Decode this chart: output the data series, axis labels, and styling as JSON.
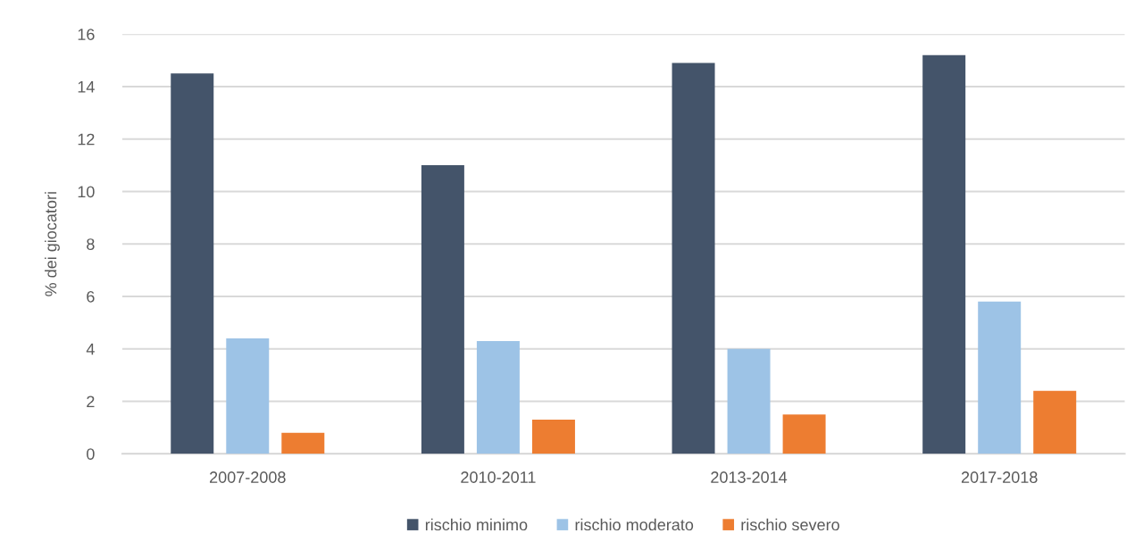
{
  "chart_data": {
    "type": "bar",
    "ylabel": "% dei giocatori",
    "categories": [
      "2007-2008",
      "2010-2011",
      "2013-2014",
      "2017-2018"
    ],
    "series": [
      {
        "name": "rischio minimo",
        "color": "#44546a",
        "values": [
          14.5,
          11.0,
          14.9,
          15.2
        ]
      },
      {
        "name": "rischio moderato",
        "color": "#9dc3e6",
        "values": [
          4.4,
          4.3,
          4.0,
          5.8
        ]
      },
      {
        "name": "rischio severo",
        "color": "#ed7d31",
        "values": [
          0.8,
          1.3,
          1.5,
          2.4
        ]
      }
    ],
    "ylim": [
      0,
      16
    ],
    "yticks": [
      0,
      2,
      4,
      6,
      8,
      10,
      12,
      14,
      16
    ],
    "grid": "y",
    "legend": "bottom"
  }
}
